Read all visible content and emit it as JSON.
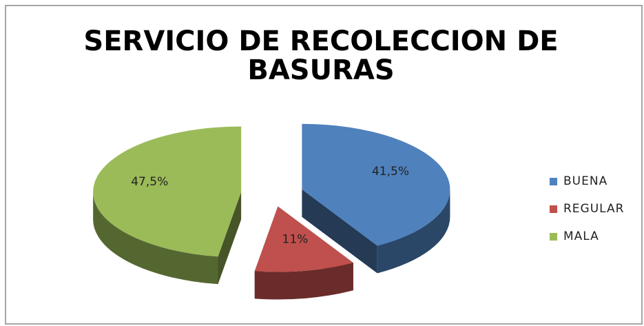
{
  "chart_data": {
    "type": "pie",
    "title": "SERVICIO DE RECOLECCION DE BASURAS",
    "categories": [
      "BUENA",
      "REGULAR",
      "MALA"
    ],
    "values": [
      41.5,
      11,
      47.5
    ],
    "value_labels": [
      "41,5%",
      "11%",
      "47,5%"
    ],
    "colors": [
      "#4f81bd",
      "#c0504d",
      "#9bbb59"
    ],
    "legend": "right"
  }
}
